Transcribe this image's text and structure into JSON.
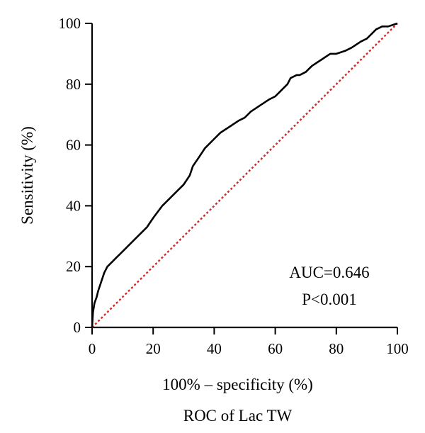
{
  "chart_data": {
    "type": "line",
    "xlabel": "100% – specificity (%)",
    "ylabel": "Sensitivity (%)",
    "caption": "ROC of Lac TW",
    "xlim": [
      0,
      100
    ],
    "ylim": [
      0,
      100
    ],
    "x_ticks": [
      0,
      20,
      40,
      60,
      80,
      100
    ],
    "y_ticks": [
      0,
      20,
      40,
      60,
      80,
      100
    ],
    "grid": false,
    "annotations": [
      "AUC=0.646",
      "P<0.001"
    ],
    "series": [
      {
        "color": "#000000",
        "style": "solid",
        "x": [
          0,
          0.3,
          0.8,
          1.5,
          2,
          3,
          4,
          5,
          6,
          8,
          10,
          12,
          15,
          18,
          20,
          23,
          25,
          28,
          30,
          32,
          33,
          35,
          37,
          40,
          42,
          45,
          48,
          50,
          52,
          55,
          58,
          60,
          62,
          64,
          65,
          67,
          68,
          70,
          72,
          75,
          78,
          80,
          83,
          85,
          88,
          90,
          92,
          93,
          95,
          97,
          100
        ],
        "y": [
          0,
          5,
          8,
          10,
          12,
          15,
          18,
          20,
          21,
          23,
          25,
          27,
          30,
          33,
          36,
          40,
          42,
          45,
          47,
          50,
          53,
          56,
          59,
          62,
          64,
          66,
          68,
          69,
          71,
          73,
          75,
          76,
          78,
          80,
          82,
          83,
          83,
          84,
          86,
          88,
          90,
          90,
          91,
          92,
          94,
          95,
          97,
          98,
          99,
          99,
          100
        ]
      },
      {
        "color": "#cc2b2b",
        "style": "dotted",
        "x": [
          0,
          100
        ],
        "y": [
          0,
          100
        ]
      }
    ]
  }
}
